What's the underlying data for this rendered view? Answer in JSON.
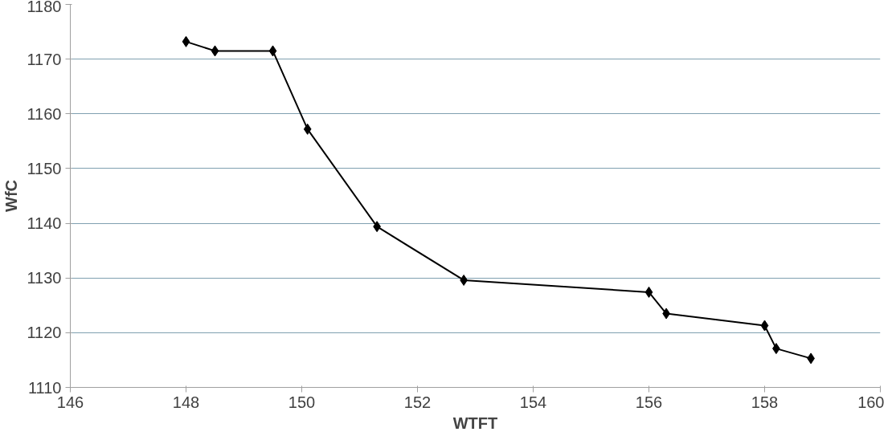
{
  "chart_data": {
    "type": "line",
    "xlabel": "WTFT",
    "ylabel": "WfC",
    "x": [
      148.0,
      148.5,
      149.5,
      150.1,
      151.3,
      152.8,
      156.0,
      156.3,
      158.0,
      158.2,
      158.8
    ],
    "series": [
      {
        "color": "#000000",
        "values": [
          1173.2,
          1171.5,
          1171.5,
          1157.2,
          1139.4,
          1129.6,
          1127.4,
          1123.5,
          1121.3,
          1117.1,
          1115.3
        ]
      }
    ],
    "xlim": [
      146,
      160
    ],
    "xticks": [
      146,
      148,
      150,
      152,
      154,
      156,
      158,
      160
    ],
    "ylim": [
      1110,
      1180
    ],
    "yticks": [
      1110,
      1120,
      1130,
      1140,
      1150,
      1160,
      1170,
      1180
    ],
    "grid": "y",
    "marker": "diamond",
    "line_style": "solid"
  }
}
